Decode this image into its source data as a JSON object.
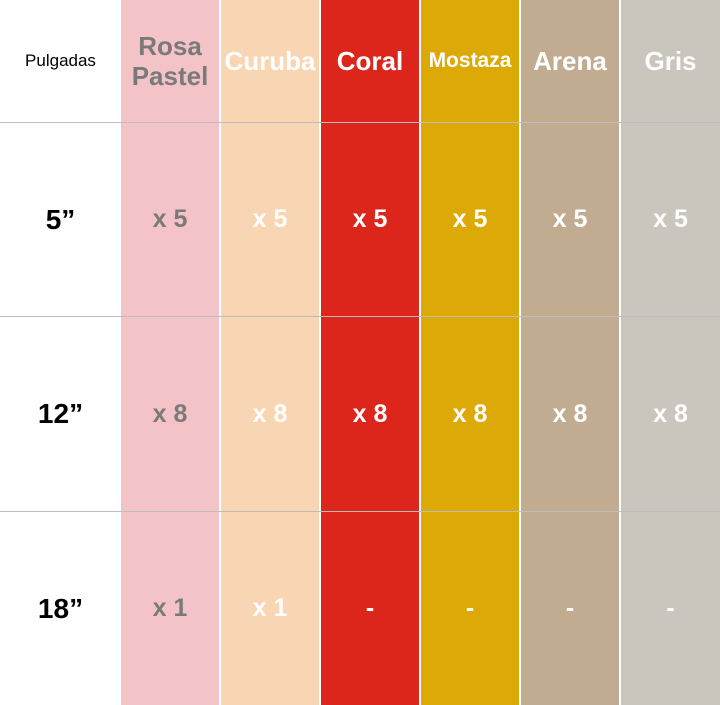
{
  "table": {
    "corner_label": "Pulgadas",
    "colors": [
      {
        "name": "Rosa Pastel",
        "line1": "Rosa",
        "line2": "Pastel",
        "bg": "#f3c3c7",
        "header_color": "#7a7a7a",
        "value_color": "#7a7a7a",
        "values": [
          "x 5",
          "x 8",
          "x 1"
        ]
      },
      {
        "name": "Curuba",
        "line1": "Curuba",
        "line2": "",
        "bg": "#f9d6b3",
        "header_color": "#ffffff",
        "value_color": "#ffffff",
        "values": [
          "x 5",
          "x 8",
          "x 1"
        ]
      },
      {
        "name": "Coral",
        "line1": "Coral",
        "line2": "",
        "bg": "#dc261c",
        "header_color": "#ffffff",
        "value_color": "#ffffff",
        "values": [
          "x 5",
          "x 8",
          "-"
        ]
      },
      {
        "name": "Mostaza",
        "line1": "Mostaza",
        "line2": "",
        "bg": "#dca906",
        "header_color": "#ffffff",
        "value_color": "#ffffff",
        "values": [
          "x 5",
          "x 8",
          "-"
        ]
      },
      {
        "name": "Arena",
        "line1": "Arena",
        "line2": "",
        "bg": "#c2ac91",
        "header_color": "#ffffff",
        "value_color": "#ffffff",
        "values": [
          "x 5",
          "x 8",
          "-"
        ]
      },
      {
        "name": "Gris",
        "line1": "Gris",
        "line2": "",
        "bg": "#cbc6bd",
        "header_color": "#ffffff",
        "value_color": "#ffffff",
        "values": [
          "x 5",
          "x 8",
          "-"
        ]
      }
    ],
    "sizes": [
      "5”",
      "12”",
      "18”"
    ]
  }
}
